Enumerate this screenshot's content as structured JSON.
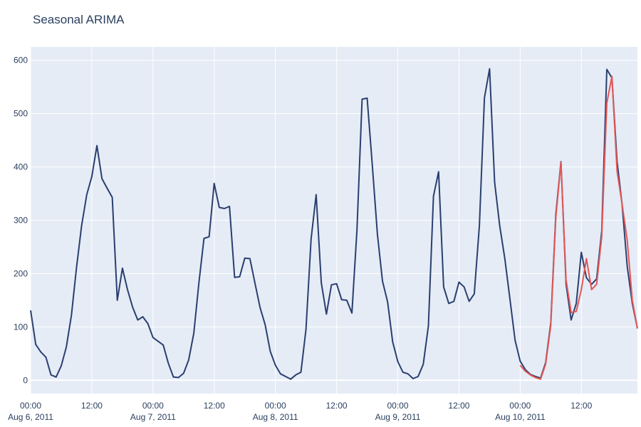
{
  "chart_data": {
    "type": "line",
    "title": "Seasonal ARIMA",
    "xlabel": "",
    "ylabel": "",
    "x_start": "2011-08-06 00:00",
    "x_step_hours": 1,
    "ylim": [
      -25,
      625
    ],
    "xlim": [
      "2011-08-06 00:00",
      "2011-08-10 23:00"
    ],
    "grid": true,
    "y_ticks": [
      "0",
      "100",
      "200",
      "300",
      "400",
      "500",
      "600"
    ],
    "x_ticks": [
      {
        "time": "2011-08-06 00:00",
        "label": "00:00",
        "date": "Aug 6, 2011"
      },
      {
        "time": "2011-08-06 12:00",
        "label": "12:00",
        "date": ""
      },
      {
        "time": "2011-08-07 00:00",
        "label": "00:00",
        "date": "Aug 7, 2011"
      },
      {
        "time": "2011-08-07 12:00",
        "label": "12:00",
        "date": ""
      },
      {
        "time": "2011-08-08 00:00",
        "label": "00:00",
        "date": "Aug 8, 2011"
      },
      {
        "time": "2011-08-08 12:00",
        "label": "12:00",
        "date": ""
      },
      {
        "time": "2011-08-09 00:00",
        "label": "00:00",
        "date": "Aug 9, 2011"
      },
      {
        "time": "2011-08-09 12:00",
        "label": "12:00",
        "date": ""
      },
      {
        "time": "2011-08-10 00:00",
        "label": "00:00",
        "date": "Aug 10, 2011"
      },
      {
        "time": "2011-08-10 12:00",
        "label": "12:00",
        "date": ""
      }
    ],
    "series": [
      {
        "color": "#2a3f6f",
        "start": "2011-08-06 00:00",
        "values": [
          131,
          67,
          53,
          43,
          10,
          6,
          27,
          62,
          122,
          211,
          290,
          348,
          382,
          440,
          378,
          360,
          343,
          150,
          210,
          170,
          137,
          113,
          119,
          106,
          80,
          73,
          66,
          32,
          6,
          5,
          13,
          38,
          88,
          183,
          266,
          269,
          369,
          324,
          322,
          326,
          193,
          194,
          229,
          228,
          182,
          136,
          104,
          54,
          28,
          12,
          7,
          2,
          10,
          15,
          95,
          265,
          348,
          183,
          124,
          179,
          181,
          151,
          150,
          126,
          282,
          527,
          529,
          404,
          274,
          186,
          147,
          72,
          35,
          15,
          12,
          3,
          7,
          30,
          102,
          345,
          391,
          175,
          144,
          148,
          184,
          175,
          148,
          162,
          290,
          530,
          584,
          371,
          289,
          228,
          152,
          75,
          36,
          20,
          11,
          7,
          4,
          33,
          107,
          311,
          410,
          180,
          113,
          144,
          240,
          192,
          180,
          190,
          280,
          583,
          567,
          410,
          329,
          213,
          144,
          97
        ]
      },
      {
        "color": "#e45756",
        "start": "2011-08-10 00:00",
        "values": [
          28,
          17,
          10,
          5,
          2,
          30,
          102,
          305,
          409,
          188,
          127,
          129,
          170,
          228,
          170,
          180,
          270,
          520,
          570,
          392,
          330,
          262,
          150,
          97
        ]
      }
    ]
  }
}
